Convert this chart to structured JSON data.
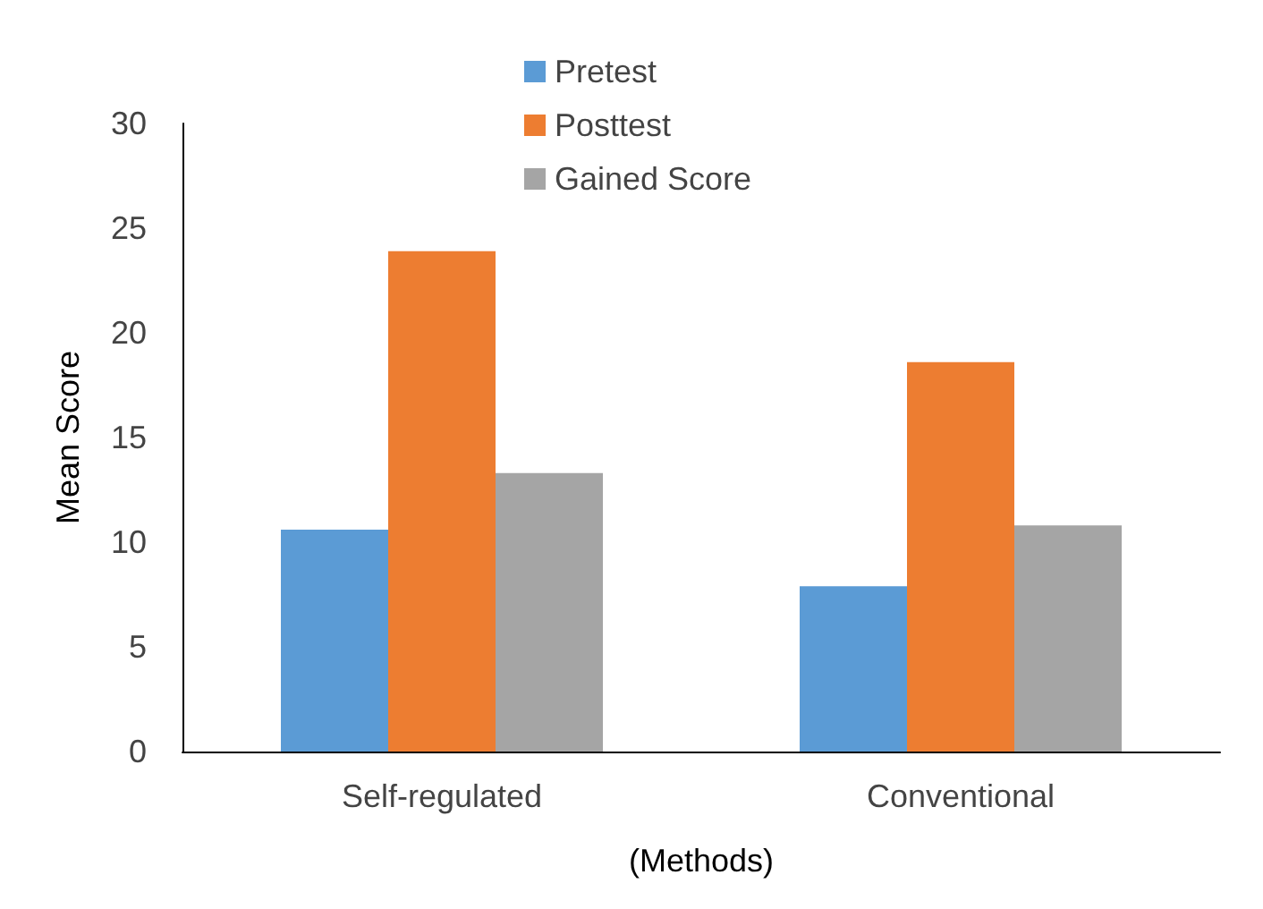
{
  "chart_data": {
    "type": "bar",
    "xlabel": "(Methods)",
    "ylabel": "Mean Score",
    "categories": [
      "Self-regulated",
      "Conventional"
    ],
    "series": [
      {
        "name": "Pretest",
        "color": "#5b9bd5",
        "values": [
          10.6,
          7.9
        ]
      },
      {
        "name": "Posttest",
        "color": "#ed7d31",
        "values": [
          23.9,
          18.6
        ]
      },
      {
        "name": "Gained Score",
        "color": "#a5a5a5",
        "values": [
          13.3,
          10.8
        ]
      }
    ],
    "ylim": [
      0,
      30
    ],
    "yticks": [
      0,
      5,
      10,
      15,
      20,
      25,
      30
    ],
    "grid": false,
    "legend": "top"
  }
}
